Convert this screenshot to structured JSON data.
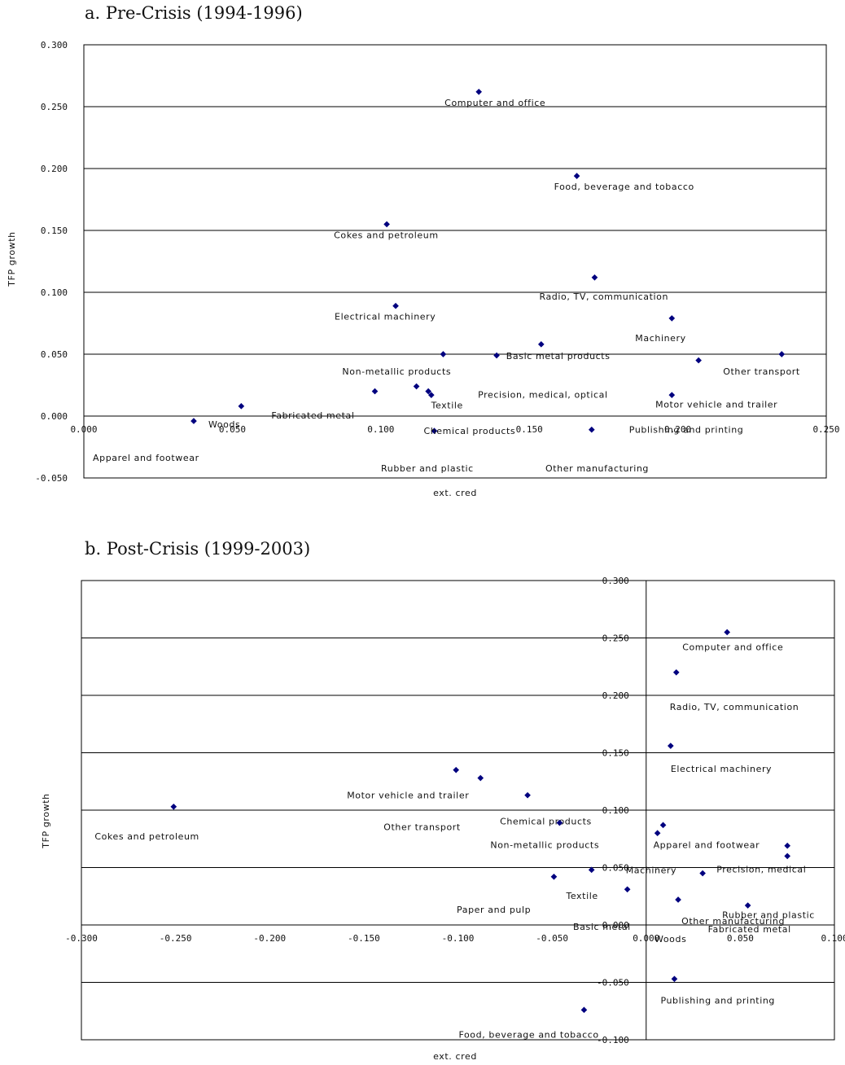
{
  "chart_data": [
    {
      "type": "scatter",
      "title": "a. Pre-Crisis (1994-1996)",
      "xlabel": "ext. cred",
      "ylabel": "TFP growth",
      "xlim": [
        0.0,
        0.25
      ],
      "ylim": [
        -0.05,
        0.3
      ],
      "xticks": [
        "0.000",
        "0.050",
        "0.100",
        "0.150",
        "0.200",
        "0.250"
      ],
      "yticks": [
        "-0.050",
        "0.000",
        "0.050",
        "0.100",
        "0.150",
        "0.200",
        "0.250",
        "0.300"
      ],
      "grid": true,
      "marker_color": "#00007f",
      "points": [
        {
          "label": "Computer and office",
          "x": 0.133,
          "y": 0.262
        },
        {
          "label": "Food, beverage and tobacco",
          "x": 0.166,
          "y": 0.194
        },
        {
          "label": "Cokes and petroleum",
          "x": 0.102,
          "y": 0.155
        },
        {
          "label": "Radio, TV, communication",
          "x": 0.172,
          "y": 0.112
        },
        {
          "label": "Electrical machinery",
          "x": 0.105,
          "y": 0.089
        },
        {
          "label": "Machinery",
          "x": 0.198,
          "y": 0.079
        },
        {
          "label": "Basic metal products",
          "x": 0.154,
          "y": 0.058
        },
        {
          "label": "Non-metallic products",
          "x": 0.121,
          "y": 0.05
        },
        {
          "label": "Other transport",
          "x": 0.235,
          "y": 0.05
        },
        {
          "label": "Precision, medical, optical",
          "x": 0.139,
          "y": 0.049
        },
        {
          "label": "Motor vehicle and trailer",
          "x": 0.207,
          "y": 0.045
        },
        {
          "label": "Textile",
          "x": 0.112,
          "y": 0.024
        },
        {
          "label": "",
          "x": 0.098,
          "y": 0.02
        },
        {
          "label": "",
          "x": 0.116,
          "y": 0.02
        },
        {
          "label": "",
          "x": 0.117,
          "y": 0.017
        },
        {
          "label": "",
          "x": 0.198,
          "y": 0.017
        },
        {
          "label": "Fabricated metal",
          "x": 0.053,
          "y": 0.008
        },
        {
          "label": "Woods",
          "x": 0.037,
          "y": -0.004
        },
        {
          "label": "Chemical products",
          "x": 0.118,
          "y": -0.012
        },
        {
          "label": "Publishing and printing",
          "x": 0.171,
          "y": -0.011
        },
        {
          "label": "Apparel and footwear",
          "x": null,
          "y": null
        },
        {
          "label": "Rubber and plastic",
          "x": null,
          "y": null
        },
        {
          "label": "Other manufacturing",
          "x": null,
          "y": null
        }
      ]
    },
    {
      "type": "scatter",
      "title": "b. Post-Crisis (1999-2003)",
      "xlabel": "ext. cred",
      "ylabel": "TFP growth",
      "xlim": [
        -0.3,
        0.1
      ],
      "ylim": [
        -0.1,
        0.3
      ],
      "xticks": [
        "-0.300",
        "-0.250",
        "-0.200",
        "-0.150",
        "-0.100",
        "-0.050",
        "0.000",
        "0.050",
        "0.100"
      ],
      "yticks": [
        "-0.100",
        "-0.050",
        "0.000",
        "0.050",
        "0.100",
        "0.150",
        "0.200",
        "0.250",
        "0.300"
      ],
      "grid": true,
      "marker_color": "#00007f",
      "points": [
        {
          "label": "Computer and office",
          "x": 0.043,
          "y": 0.255
        },
        {
          "label": "Radio, TV, communication",
          "x": 0.016,
          "y": 0.22
        },
        {
          "label": "Electrical machinery",
          "x": 0.013,
          "y": 0.156
        },
        {
          "label": "Motor vehicle and trailer",
          "x": -0.101,
          "y": 0.135
        },
        {
          "label": "Other transport",
          "x": -0.088,
          "y": 0.128
        },
        {
          "label": "Chemical products",
          "x": -0.063,
          "y": 0.113
        },
        {
          "label": "Cokes and petroleum",
          "x": -0.251,
          "y": 0.103
        },
        {
          "label": "Non-metallic products",
          "x": -0.046,
          "y": 0.089
        },
        {
          "label": "Apparel and footwear",
          "x": 0.009,
          "y": 0.087
        },
        {
          "label": "",
          "x": 0.006,
          "y": 0.08
        },
        {
          "label": "",
          "x": 0.075,
          "y": 0.069
        },
        {
          "label": "Precision, medical",
          "x": 0.075,
          "y": 0.06
        },
        {
          "label": "Machinery",
          "x": -0.029,
          "y": 0.048
        },
        {
          "label": "Rubber and plastic",
          "x": 0.03,
          "y": 0.045
        },
        {
          "label": "Textile",
          "x": -0.049,
          "y": 0.042
        },
        {
          "label": "",
          "x": -0.01,
          "y": 0.031
        },
        {
          "label": "Other manufacturing",
          "x": 0.017,
          "y": 0.022
        },
        {
          "label": "Fabricated metal",
          "x": 0.054,
          "y": 0.017
        },
        {
          "label": "Paper and pulp",
          "x": null,
          "y": null
        },
        {
          "label": "Basic metal",
          "x": null,
          "y": null
        },
        {
          "label": "Woods",
          "x": null,
          "y": null
        },
        {
          "label": "Publishing and printing",
          "x": 0.015,
          "y": -0.047
        },
        {
          "label": "Food, beverage and tobacco",
          "x": -0.033,
          "y": -0.074
        }
      ]
    }
  ]
}
